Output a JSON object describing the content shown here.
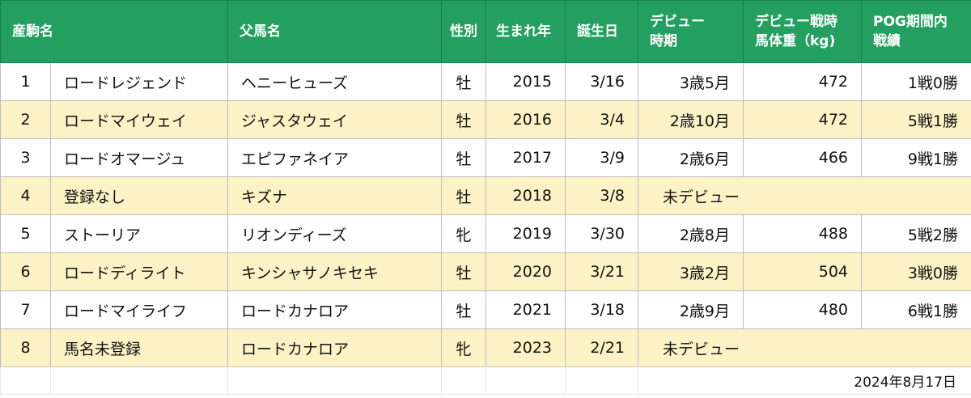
{
  "headers": {
    "foal_name": "産駒名",
    "sire": "父馬名",
    "sex": "性別",
    "birth_year": "生まれ年",
    "birthday": "誕生日",
    "debut_period_line1": "デビュー",
    "debut_period_line2": "時期",
    "debut_weight_line1": "デビュー戦時",
    "debut_weight_line2": "馬体重（kg)",
    "pog_record_line1": "POG期間内",
    "pog_record_line2": "戦績"
  },
  "rows": [
    {
      "no": "1",
      "name": "ロードレジェンド",
      "sire": "ヘニーヒューズ",
      "sex": "牡",
      "year": "2015",
      "birthday": "3/16",
      "debut": "3歳5月",
      "weight": "472",
      "record": "1戦0勝"
    },
    {
      "no": "2",
      "name": "ロードマイウェイ",
      "sire": "ジャスタウェイ",
      "sex": "牡",
      "year": "2016",
      "birthday": "3/4",
      "debut": "2歳10月",
      "weight": "472",
      "record": "5戦1勝"
    },
    {
      "no": "3",
      "name": "ロードオマージュ",
      "sire": "エピファネイア",
      "sex": "牡",
      "year": "2017",
      "birthday": "3/9",
      "debut": "2歳6月",
      "weight": "466",
      "record": "9戦1勝"
    },
    {
      "no": "4",
      "name": "登録なし",
      "sire": "キズナ",
      "sex": "牡",
      "year": "2018",
      "birthday": "3/8",
      "debut": "未デビュー",
      "weight": "",
      "record": ""
    },
    {
      "no": "5",
      "name": "ストーリア",
      "sire": "リオンディーズ",
      "sex": "牝",
      "year": "2019",
      "birthday": "3/30",
      "debut": "2歳8月",
      "weight": "488",
      "record": "5戦2勝"
    },
    {
      "no": "6",
      "name": "ロードディライト",
      "sire": "キンシャサノキセキ",
      "sex": "牡",
      "year": "2020",
      "birthday": "3/21",
      "debut": "3歳2月",
      "weight": "504",
      "record": "3戦0勝"
    },
    {
      "no": "7",
      "name": "ロードマイライフ",
      "sire": "ロードカナロア",
      "sex": "牡",
      "year": "2021",
      "birthday": "3/18",
      "debut": "2歳9月",
      "weight": "480",
      "record": "6戦1勝"
    },
    {
      "no": "8",
      "name": "馬名未登録",
      "sire": "ロードカナロア",
      "sex": "牝",
      "year": "2023",
      "birthday": "2/21",
      "debut": "未デビュー",
      "weight": "",
      "record": ""
    }
  ],
  "footer_date": "2024年8月17日",
  "colors": {
    "header_green": "#23a05f",
    "band_yellow": "#fbf3c5"
  }
}
